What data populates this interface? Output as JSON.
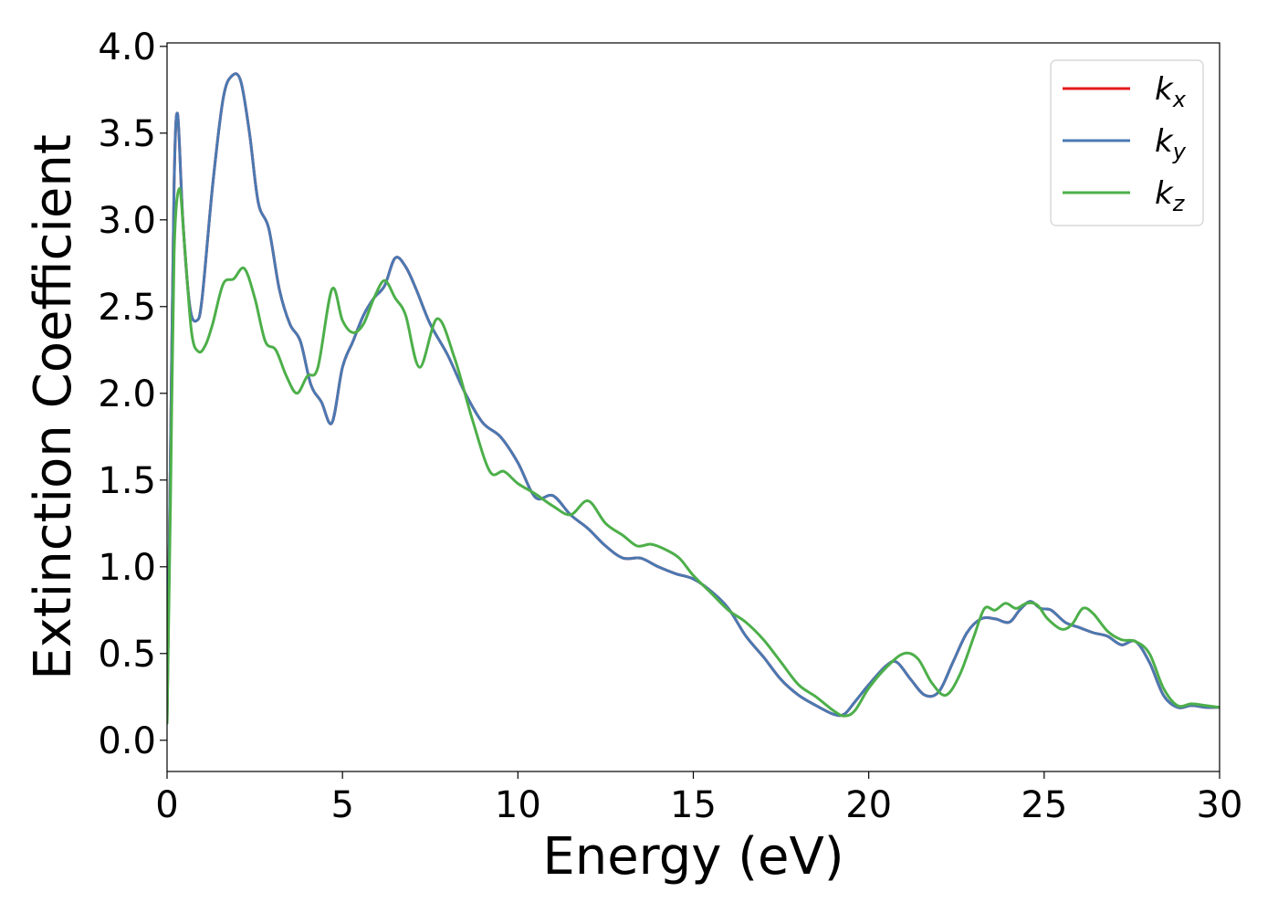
{
  "chart_data": {
    "type": "line",
    "title": "",
    "xlabel": "Energy (eV)",
    "ylabel": "Extinction Coefficient",
    "xlim": [
      0,
      30
    ],
    "ylim": [
      -0.18,
      4.02
    ],
    "xticks": [
      0,
      5,
      10,
      15,
      20,
      25,
      30
    ],
    "xtick_labels": [
      "0",
      "5",
      "10",
      "15",
      "20",
      "25",
      "30"
    ],
    "yticks": [
      0.0,
      0.5,
      1.0,
      1.5,
      2.0,
      2.5,
      3.0,
      3.5,
      4.0
    ],
    "ytick_labels": [
      "0.0",
      "0.5",
      "1.0",
      "1.5",
      "2.0",
      "2.5",
      "3.0",
      "3.5",
      "4.0"
    ],
    "grid": false,
    "legend_position": "top-right",
    "series": [
      {
        "name": "k_x",
        "label_base": "k",
        "label_sub": "x",
        "color": "#e41a1c",
        "x": [
          0,
          0.1,
          0.2,
          0.3,
          0.45,
          0.65,
          0.85,
          1.0,
          1.3,
          1.6,
          1.85,
          2.1,
          2.35,
          2.6,
          2.9,
          3.2,
          3.5,
          3.8,
          4.1,
          4.4,
          4.7,
          5.0,
          5.3,
          5.6,
          5.9,
          6.2,
          6.5,
          6.8,
          7.1,
          7.5,
          8.0,
          8.5,
          9.0,
          9.5,
          10.0,
          10.5,
          11.0,
          11.5,
          12.0,
          12.5,
          13.0,
          13.5,
          14.0,
          14.5,
          15.0,
          15.5,
          16.0,
          16.5,
          17.0,
          17.5,
          18.0,
          18.5,
          19.0,
          19.3,
          19.6,
          20.0,
          20.5,
          20.8,
          21.2,
          21.6,
          22.0,
          22.4,
          22.8,
          23.2,
          23.6,
          24.0,
          24.3,
          24.6,
          24.9,
          25.2,
          25.6,
          26.0,
          26.4,
          26.8,
          27.2,
          27.6,
          28.0,
          28.4,
          28.8,
          29.2,
          29.6,
          30.0
        ],
        "values": [
          0.1,
          1.7,
          3.2,
          3.61,
          3.0,
          2.5,
          2.42,
          2.55,
          3.2,
          3.7,
          3.83,
          3.8,
          3.5,
          3.1,
          2.95,
          2.6,
          2.4,
          2.3,
          2.05,
          1.95,
          1.83,
          2.15,
          2.3,
          2.45,
          2.55,
          2.62,
          2.78,
          2.73,
          2.6,
          2.4,
          2.22,
          2.0,
          1.83,
          1.75,
          1.6,
          1.4,
          1.41,
          1.3,
          1.22,
          1.12,
          1.05,
          1.05,
          1.0,
          0.96,
          0.93,
          0.86,
          0.76,
          0.6,
          0.48,
          0.35,
          0.26,
          0.2,
          0.15,
          0.15,
          0.22,
          0.32,
          0.43,
          0.45,
          0.35,
          0.26,
          0.28,
          0.45,
          0.62,
          0.7,
          0.7,
          0.68,
          0.75,
          0.8,
          0.76,
          0.75,
          0.68,
          0.65,
          0.62,
          0.6,
          0.55,
          0.57,
          0.45,
          0.26,
          0.19,
          0.2,
          0.19,
          0.19
        ]
      },
      {
        "name": "k_y",
        "label_base": "k",
        "label_sub": "y",
        "color": "#4a79b2",
        "x": [
          0,
          0.1,
          0.2,
          0.3,
          0.45,
          0.65,
          0.85,
          1.0,
          1.3,
          1.6,
          1.85,
          2.1,
          2.35,
          2.6,
          2.9,
          3.2,
          3.5,
          3.8,
          4.1,
          4.4,
          4.7,
          5.0,
          5.3,
          5.6,
          5.9,
          6.2,
          6.5,
          6.8,
          7.1,
          7.5,
          8.0,
          8.5,
          9.0,
          9.5,
          10.0,
          10.5,
          11.0,
          11.5,
          12.0,
          12.5,
          13.0,
          13.5,
          14.0,
          14.5,
          15.0,
          15.5,
          16.0,
          16.5,
          17.0,
          17.5,
          18.0,
          18.5,
          19.0,
          19.3,
          19.6,
          20.0,
          20.5,
          20.8,
          21.2,
          21.6,
          22.0,
          22.4,
          22.8,
          23.2,
          23.6,
          24.0,
          24.3,
          24.6,
          24.9,
          25.2,
          25.6,
          26.0,
          26.4,
          26.8,
          27.2,
          27.6,
          28.0,
          28.4,
          28.8,
          29.2,
          29.6,
          30.0
        ],
        "values": [
          0.1,
          1.7,
          3.2,
          3.61,
          3.0,
          2.5,
          2.42,
          2.55,
          3.2,
          3.7,
          3.83,
          3.8,
          3.5,
          3.1,
          2.95,
          2.6,
          2.4,
          2.3,
          2.05,
          1.95,
          1.83,
          2.15,
          2.3,
          2.45,
          2.55,
          2.62,
          2.78,
          2.73,
          2.6,
          2.4,
          2.22,
          2.0,
          1.83,
          1.75,
          1.6,
          1.4,
          1.41,
          1.3,
          1.22,
          1.12,
          1.05,
          1.05,
          1.0,
          0.96,
          0.93,
          0.86,
          0.76,
          0.6,
          0.48,
          0.35,
          0.26,
          0.2,
          0.15,
          0.15,
          0.22,
          0.32,
          0.43,
          0.45,
          0.35,
          0.26,
          0.28,
          0.45,
          0.62,
          0.7,
          0.7,
          0.68,
          0.75,
          0.8,
          0.76,
          0.75,
          0.68,
          0.65,
          0.62,
          0.6,
          0.55,
          0.57,
          0.45,
          0.26,
          0.19,
          0.2,
          0.19,
          0.19
        ]
      },
      {
        "name": "k_z",
        "label_base": "k",
        "label_sub": "z",
        "color": "#4daf4a",
        "x": [
          0,
          0.1,
          0.2,
          0.35,
          0.5,
          0.7,
          0.9,
          1.1,
          1.3,
          1.6,
          1.9,
          2.2,
          2.5,
          2.8,
          3.1,
          3.4,
          3.7,
          4.0,
          4.3,
          4.7,
          5.0,
          5.3,
          5.6,
          5.9,
          6.2,
          6.5,
          6.8,
          7.2,
          7.7,
          8.2,
          8.7,
          9.2,
          9.6,
          10.0,
          10.5,
          11.0,
          11.5,
          12.0,
          12.5,
          13.0,
          13.4,
          13.8,
          14.2,
          14.6,
          15.0,
          15.5,
          16.0,
          16.5,
          17.0,
          17.5,
          18.0,
          18.5,
          19.0,
          19.3,
          19.6,
          20.0,
          20.5,
          21.0,
          21.4,
          21.8,
          22.2,
          22.6,
          23.0,
          23.3,
          23.6,
          23.9,
          24.2,
          24.5,
          24.8,
          25.1,
          25.5,
          25.8,
          26.1,
          26.4,
          26.8,
          27.2,
          27.6,
          28.0,
          28.4,
          28.8,
          29.2,
          29.6,
          30.0
        ],
        "values": [
          0.1,
          1.4,
          2.8,
          3.18,
          2.85,
          2.35,
          2.24,
          2.28,
          2.4,
          2.63,
          2.66,
          2.72,
          2.55,
          2.3,
          2.25,
          2.1,
          2.0,
          2.1,
          2.15,
          2.6,
          2.42,
          2.35,
          2.4,
          2.55,
          2.65,
          2.55,
          2.45,
          2.15,
          2.43,
          2.2,
          1.85,
          1.55,
          1.55,
          1.48,
          1.42,
          1.35,
          1.3,
          1.38,
          1.25,
          1.18,
          1.12,
          1.13,
          1.1,
          1.05,
          0.95,
          0.85,
          0.75,
          0.68,
          0.58,
          0.45,
          0.32,
          0.25,
          0.17,
          0.14,
          0.17,
          0.3,
          0.42,
          0.5,
          0.47,
          0.33,
          0.26,
          0.38,
          0.6,
          0.76,
          0.75,
          0.79,
          0.76,
          0.79,
          0.78,
          0.7,
          0.64,
          0.67,
          0.76,
          0.73,
          0.63,
          0.58,
          0.57,
          0.5,
          0.3,
          0.2,
          0.21,
          0.2,
          0.19
        ]
      }
    ]
  }
}
